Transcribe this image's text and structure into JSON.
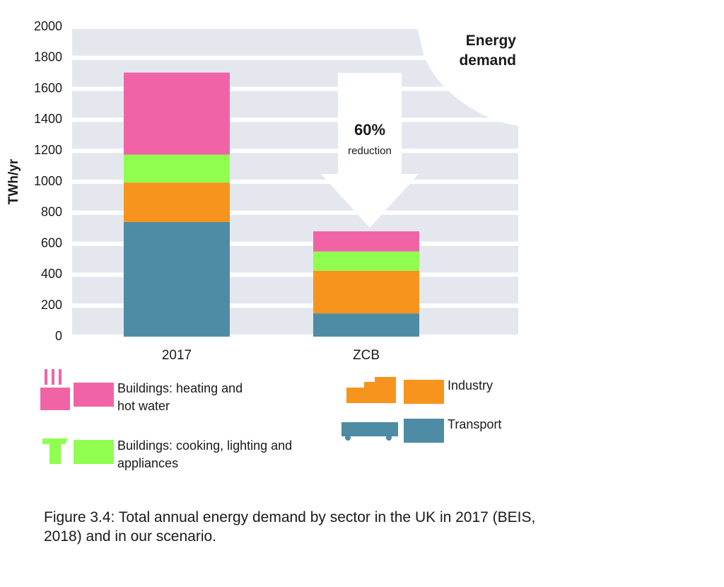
{
  "chart_data": {
    "type": "stacked_bar",
    "y_label": "TWh/yr",
    "categories": [
      "2017",
      "ZCB"
    ],
    "series": [
      {
        "name": "Transport",
        "color": "#4e8ba4",
        "values": [
          740,
          150
        ]
      },
      {
        "name": "Industry",
        "color": "#f7941d",
        "values": [
          255,
          275
        ]
      },
      {
        "name": "Buildings: cooking, lighting and appliances",
        "color": "#90ff50",
        "values": [
          180,
          125
        ]
      },
      {
        "name": "Buildings: heating and hot water",
        "color": "#f064a6",
        "values": [
          530,
          130
        ]
      }
    ],
    "ylim": [
      0,
      2000
    ],
    "yticks": [
      0,
      200,
      400,
      600,
      800,
      1000,
      1200,
      1400,
      1600,
      1800,
      2000
    ],
    "grid": true,
    "annotations": {
      "panel": "Energy demand",
      "change": "60%",
      "change_label": "reduction"
    },
    "caption": "Figure 3.4: Total annual energy demand by sector in the UK in 2017 (BEIS, 2018) and in our scenario."
  }
}
